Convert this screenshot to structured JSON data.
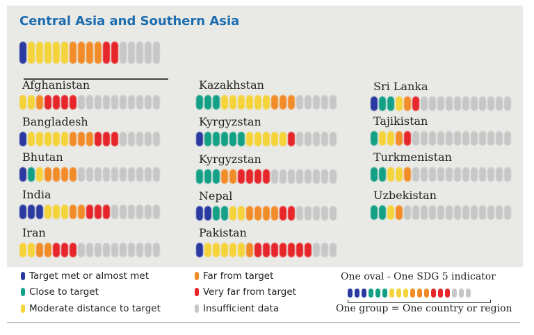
{
  "colors": {
    "met": "#2b3aa0",
    "close": "#14a086",
    "moderate": "#f5d33a",
    "far": "#f28c28",
    "very_far": "#e6262a",
    "insufficient": "#c6c8c8"
  },
  "chart_data": {
    "type": "table",
    "title": "Central Asia and Southern Asia",
    "categories": [
      "met",
      "close",
      "moderate",
      "far",
      "very_far",
      "insufficient"
    ],
    "region": {
      "met": 1,
      "close": 0,
      "moderate": 5,
      "far": 4,
      "very_far": 2,
      "insufficient": 5
    },
    "countries": [
      {
        "name": "Afghanistan",
        "counts": {
          "met": 0,
          "close": 0,
          "moderate": 2,
          "far": 1,
          "very_far": 4,
          "insufficient": 10
        }
      },
      {
        "name": "Bangladesh",
        "counts": {
          "met": 1,
          "close": 0,
          "moderate": 5,
          "far": 3,
          "very_far": 3,
          "insufficient": 5
        }
      },
      {
        "name": "Bhutan",
        "counts": {
          "met": 1,
          "close": 1,
          "moderate": 1,
          "far": 4,
          "very_far": 0,
          "insufficient": 10
        }
      },
      {
        "name": "India",
        "counts": {
          "met": 3,
          "close": 0,
          "moderate": 3,
          "far": 2,
          "very_far": 3,
          "insufficient": 6
        }
      },
      {
        "name": "Iran",
        "counts": {
          "met": 0,
          "close": 0,
          "moderate": 2,
          "far": 2,
          "very_far": 3,
          "insufficient": 10
        }
      },
      {
        "name": "Kazakhstan",
        "counts": {
          "met": 0,
          "close": 3,
          "moderate": 6,
          "far": 3,
          "very_far": 0,
          "insufficient": 5
        }
      },
      {
        "name": "Kyrgyzstan",
        "counts": {
          "met": 1,
          "close": 5,
          "moderate": 5,
          "far": 0,
          "very_far": 1,
          "insufficient": 5
        }
      },
      {
        "name": "Kyrgyzstan",
        "counts": {
          "met": 0,
          "close": 3,
          "moderate": 0,
          "far": 2,
          "very_far": 4,
          "insufficient": 8
        }
      },
      {
        "name": "Nepal",
        "counts": {
          "met": 2,
          "close": 2,
          "moderate": 2,
          "far": 4,
          "very_far": 2,
          "insufficient": 5
        }
      },
      {
        "name": "Pakistan",
        "counts": {
          "met": 1,
          "close": 0,
          "moderate": 5,
          "far": 1,
          "very_far": 7,
          "insufficient": 3
        }
      },
      {
        "name": "Sri Lanka",
        "counts": {
          "met": 1,
          "close": 2,
          "moderate": 1,
          "far": 1,
          "very_far": 1,
          "insufficient": 11
        }
      },
      {
        "name": "Tajikistan",
        "counts": {
          "met": 0,
          "close": 1,
          "moderate": 2,
          "far": 1,
          "very_far": 1,
          "insufficient": 12
        }
      },
      {
        "name": "Turkmenistan",
        "counts": {
          "met": 0,
          "close": 2,
          "moderate": 2,
          "far": 1,
          "very_far": 0,
          "insufficient": 12
        }
      },
      {
        "name": "Uzbekistan",
        "counts": {
          "met": 0,
          "close": 2,
          "moderate": 1,
          "far": 1,
          "very_far": 0,
          "insufficient": 13
        }
      }
    ]
  },
  "legend": [
    {
      "key": "met",
      "label": "Target met or almost met"
    },
    {
      "key": "close",
      "label": "Close to target"
    },
    {
      "key": "moderate",
      "label": "Moderate distance to target"
    },
    {
      "key": "far",
      "label": "Far from target"
    },
    {
      "key": "very_far",
      "label": "Very far from target"
    },
    {
      "key": "insufficient",
      "label": "Insufficient data"
    }
  ],
  "key": {
    "title": "One oval - One SDG 5 indicator",
    "caption": "One group = One country or region",
    "per_category": 3
  }
}
